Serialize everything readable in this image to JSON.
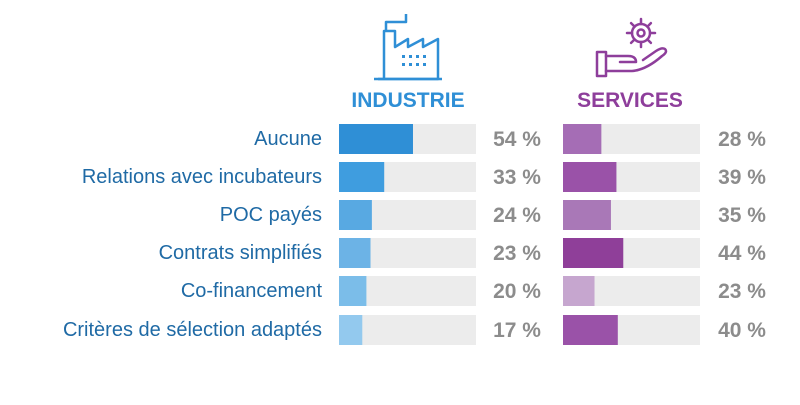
{
  "chart_data": {
    "type": "bar",
    "categories": [
      "Aucune",
      "Relations avec incubateurs",
      "POC payés",
      "Contrats simplifiés",
      "Co-financement",
      "Critères de sélection adaptés"
    ],
    "series": [
      {
        "name": "INDUSTRIE",
        "values": [
          54,
          33,
          24,
          23,
          20,
          17
        ],
        "labels": [
          "54 %",
          "33 %",
          "24 %",
          "23 %",
          "20 %",
          "17 %"
        ],
        "colors": [
          "#2f8fd6",
          "#3f9ddf",
          "#58a9e2",
          "#6cb3e6",
          "#7bbde9",
          "#93c9ee"
        ],
        "icon": "factory-icon",
        "header_color": "#2f8fd6"
      },
      {
        "name": "SERVICES",
        "values": [
          28,
          39,
          35,
          44,
          23,
          40
        ],
        "labels": [
          "28 %",
          "39 %",
          "35 %",
          "44 %",
          "23 %",
          "40 %"
        ],
        "colors": [
          "#a56db5",
          "#9a52a8",
          "#a978b7",
          "#8f3f99",
          "#c6a6cf",
          "#9a52a8"
        ],
        "icon": "gear-hand-icon",
        "header_color": "#8e3e9b"
      }
    ],
    "xlim": [
      0,
      100
    ],
    "track_color": "#ececec",
    "label_color": "#1f6aa5",
    "value_color": "#8c8c8c"
  }
}
